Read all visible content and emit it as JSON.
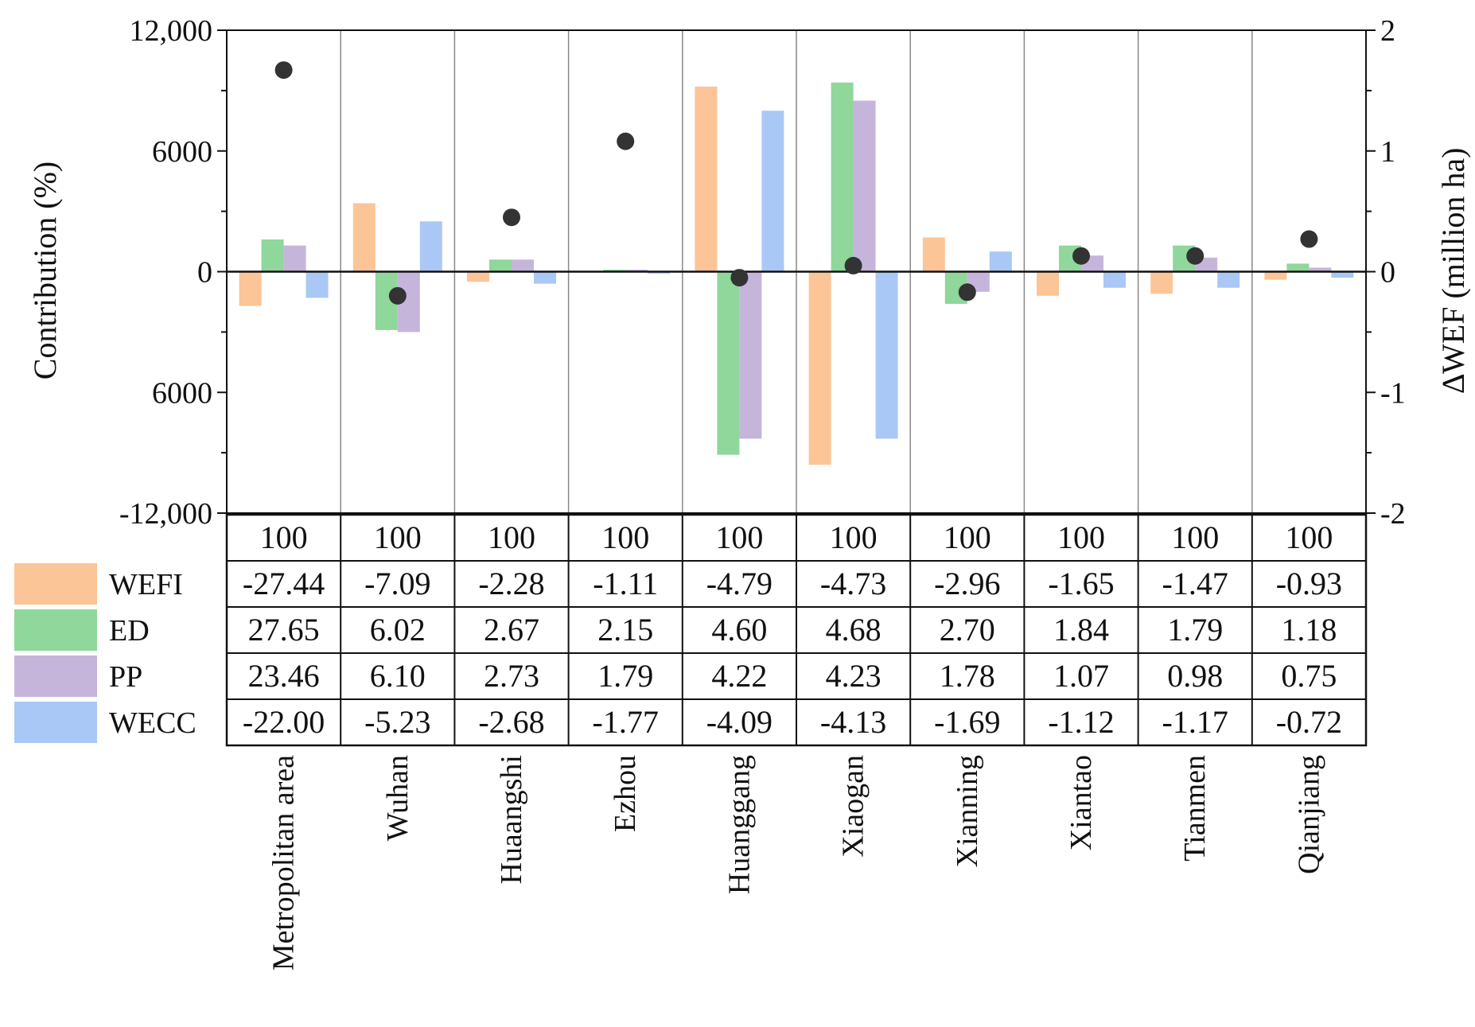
{
  "chart_data": {
    "type": "bar",
    "categories": [
      "Metropolitan area",
      "Wuhan",
      "Huaangshi",
      "Ezhou",
      "Huanggang",
      "Xiaogan",
      "Xianning",
      "Xiantao",
      "Tianmen",
      "Qianjiang"
    ],
    "ylabel": "Contribution (%)",
    "y2label": "∆WEF (million ha)",
    "ylim": [
      -12000,
      12000
    ],
    "y2lim": [
      -2,
      2
    ],
    "y_ticks": [
      "12,000",
      "6000",
      "0",
      "6000",
      "-12,000"
    ],
    "y2_ticks": [
      "2",
      "1",
      "0",
      "-1",
      "-2"
    ],
    "series": [
      {
        "name": "WEFI",
        "color": "#fbc597",
        "values": [
          -1700,
          3400,
          -500,
          0,
          9200,
          -9600,
          1700,
          -1200,
          -1100,
          -400
        ]
      },
      {
        "name": "ED",
        "color": "#8fd79a",
        "values": [
          1600,
          -2900,
          600,
          100,
          -9100,
          9400,
          -1600,
          1300,
          1300,
          400
        ]
      },
      {
        "name": "PP",
        "color": "#c5b5db",
        "values": [
          1300,
          -3000,
          600,
          100,
          -8300,
          8500,
          -1000,
          800,
          700,
          200
        ]
      },
      {
        "name": "WECC",
        "color": "#a9c8f5",
        "values": [
          -1300,
          2500,
          -600,
          -100,
          8000,
          -8300,
          1000,
          -800,
          -800,
          -300
        ]
      }
    ],
    "delta_wef": {
      "name": "∆WEF",
      "color": "#333333",
      "values": [
        1.67,
        -0.2,
        0.45,
        1.08,
        -0.05,
        0.05,
        -0.17,
        0.13,
        0.13,
        0.27
      ]
    },
    "table": {
      "rows": [
        {
          "label": "",
          "values": [
            "100",
            "100",
            "100",
            "100",
            "100",
            "100",
            "100",
            "100",
            "100",
            "100"
          ]
        },
        {
          "label": "WEFI",
          "values": [
            "-27.44",
            "-7.09",
            "-2.28",
            "-1.11",
            "-4.79",
            "-4.73",
            "-2.96",
            "-1.65",
            "-1.47",
            "-0.93"
          ]
        },
        {
          "label": "ED",
          "values": [
            "27.65",
            "6.02",
            "2.67",
            "2.15",
            "4.60",
            "4.68",
            "2.70",
            "1.84",
            "1.79",
            "1.18"
          ]
        },
        {
          "label": "PP",
          "values": [
            "23.46",
            "6.10",
            "2.73",
            "1.79",
            "4.22",
            "4.23",
            "1.78",
            "1.07",
            "0.98",
            "0.75"
          ]
        },
        {
          "label": "WECC",
          "values": [
            "-22.00",
            "-5.23",
            "-2.68",
            "-1.77",
            "-4.09",
            "-4.13",
            "-1.69",
            "-1.12",
            "-1.17",
            "-0.72"
          ]
        }
      ]
    }
  }
}
